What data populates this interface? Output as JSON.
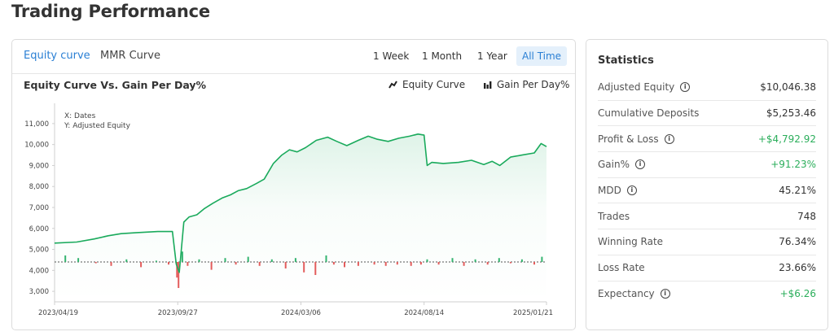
{
  "page": {
    "title": "Trading Performance"
  },
  "tabs": [
    {
      "label": "Equity curve",
      "active": true
    },
    {
      "label": "MMR Curve",
      "active": false
    }
  ],
  "ranges": [
    {
      "label": "1 Week"
    },
    {
      "label": "1 Month"
    },
    {
      "label": "1 Year"
    },
    {
      "label": "All Time",
      "active": true
    }
  ],
  "chart": {
    "title": "Equity Curve Vs. Gain Per Day%",
    "legend": {
      "equity": "Equity Curve",
      "gain": "Gain Per Day%"
    }
  },
  "chart_data": {
    "type": "line",
    "title": "Equity Curve Vs. Gain Per Day%",
    "annotation": [
      "X: Dates",
      "Y: Adjusted Equity"
    ],
    "xlabel": "Dates",
    "ylabel": "Adjusted Equity",
    "x_ticks": [
      "2023/04/19",
      "2023/09/27",
      "2024/03/06",
      "2024/08/14",
      "2025/01/21"
    ],
    "y_ticks": [
      3000,
      4000,
      5000,
      6000,
      7000,
      8000,
      9000,
      10000,
      11000
    ],
    "y_tick_labels": [
      "3,000",
      "4,000",
      "5,000",
      "6,000",
      "7,000",
      "8,000",
      "9,000",
      "10,000",
      "11,000"
    ],
    "ylim": [
      2500,
      11500
    ],
    "xlim": [
      "2023/04/19",
      "2025/01/21"
    ],
    "colors": {
      "equity": "#1aaa5c",
      "gain_positive": "#34b46f",
      "gain_negative": "#e35c5c",
      "baseline": "#555555"
    },
    "series": [
      {
        "name": "Equity Curve",
        "x": [
          "2023/04/19",
          "2023/05/18",
          "2023/06/10",
          "2023/06/28",
          "2023/07/15",
          "2023/08/05",
          "2023/09/01",
          "2023/09/20",
          "2023/09/25",
          "2023/09/29",
          "2023/10/05",
          "2023/10/12",
          "2023/10/22",
          "2023/11/01",
          "2023/11/12",
          "2023/11/24",
          "2023/12/05",
          "2023/12/15",
          "2023/12/26",
          "2024/01/08",
          "2024/01/18",
          "2024/01/30",
          "2024/02/10",
          "2024/02/20",
          "2024/03/01",
          "2024/03/12",
          "2024/03/26",
          "2024/04/10",
          "2024/04/22",
          "2024/05/05",
          "2024/05/20",
          "2024/06/02",
          "2024/06/14",
          "2024/06/28",
          "2024/07/12",
          "2024/07/26",
          "2024/08/06",
          "2024/08/14",
          "2024/08/18",
          "2024/08/24",
          "2024/09/08",
          "2024/09/28",
          "2024/10/15",
          "2024/10/31",
          "2024/11/11",
          "2024/11/21",
          "2024/12/05",
          "2024/12/20",
          "2025/01/05",
          "2025/01/14",
          "2025/01/21"
        ],
        "values": [
          5300,
          5350,
          5500,
          5650,
          5750,
          5800,
          5850,
          5850,
          4300,
          3900,
          6300,
          6550,
          6650,
          6950,
          7200,
          7450,
          7600,
          7800,
          7900,
          8150,
          8350,
          9100,
          9500,
          9750,
          9650,
          9850,
          10200,
          10350,
          10150,
          9950,
          10200,
          10400,
          10250,
          10150,
          10300,
          10400,
          10500,
          10450,
          9000,
          9150,
          9100,
          9150,
          9250,
          9050,
          9200,
          9000,
          9400,
          9500,
          9600,
          10050,
          9900
        ]
      },
      {
        "name": "Gain Per Day%",
        "unit": "%",
        "x": [
          "2023/05/03",
          "2023/05/20",
          "2023/06/12",
          "2023/07/02",
          "2023/07/22",
          "2023/08/10",
          "2023/08/30",
          "2023/09/15",
          "2023/09/26",
          "2023/09/28",
          "2023/10/03",
          "2023/10/10",
          "2023/10/25",
          "2023/11/10",
          "2023/11/28",
          "2023/12/12",
          "2023/12/28",
          "2024/01/12",
          "2024/01/28",
          "2024/02/15",
          "2024/02/28",
          "2024/03/10",
          "2024/03/25",
          "2024/04/08",
          "2024/04/18",
          "2024/05/02",
          "2024/05/20",
          "2024/06/10",
          "2024/06/25",
          "2024/07/10",
          "2024/07/28",
          "2024/08/10",
          "2024/08/18",
          "2024/09/02",
          "2024/09/20",
          "2024/10/05",
          "2024/10/20",
          "2024/11/05",
          "2024/11/20",
          "2024/12/05",
          "2024/12/20",
          "2025/01/05",
          "2025/01/15"
        ],
        "values": [
          5,
          3,
          -1,
          -3,
          2,
          -4,
          1,
          -2,
          -12,
          -20,
          8,
          -3,
          2,
          -6,
          3,
          -2,
          4,
          -3,
          2,
          -5,
          3,
          -8,
          -10,
          5,
          -2,
          -4,
          -3,
          -2,
          -3,
          -2,
          -3,
          -2,
          2,
          -2,
          3,
          -3,
          2,
          -2,
          3,
          -1,
          2,
          -2,
          4
        ]
      }
    ]
  },
  "statistics": {
    "title": "Statistics",
    "rows": [
      {
        "label": "Adjusted Equity",
        "value": "$10,046.38",
        "info": true,
        "positive": false
      },
      {
        "label": "Cumulative Deposits",
        "value": "$5,253.46",
        "info": false,
        "positive": false
      },
      {
        "label": "Profit & Loss",
        "value": "+$4,792.92",
        "info": true,
        "positive": true
      },
      {
        "label": "Gain%",
        "value": "+91.23%",
        "info": true,
        "positive": true
      },
      {
        "label": "MDD",
        "value": "45.21%",
        "info": true,
        "positive": false
      },
      {
        "label": "Trades",
        "value": "748",
        "info": false,
        "positive": false
      },
      {
        "label": "Winning Rate",
        "value": "76.34%",
        "info": false,
        "positive": false
      },
      {
        "label": "Loss Rate",
        "value": "23.66%",
        "info": false,
        "positive": false
      },
      {
        "label": "Expectancy",
        "value": "+$6.26",
        "info": true,
        "positive": true
      }
    ]
  }
}
